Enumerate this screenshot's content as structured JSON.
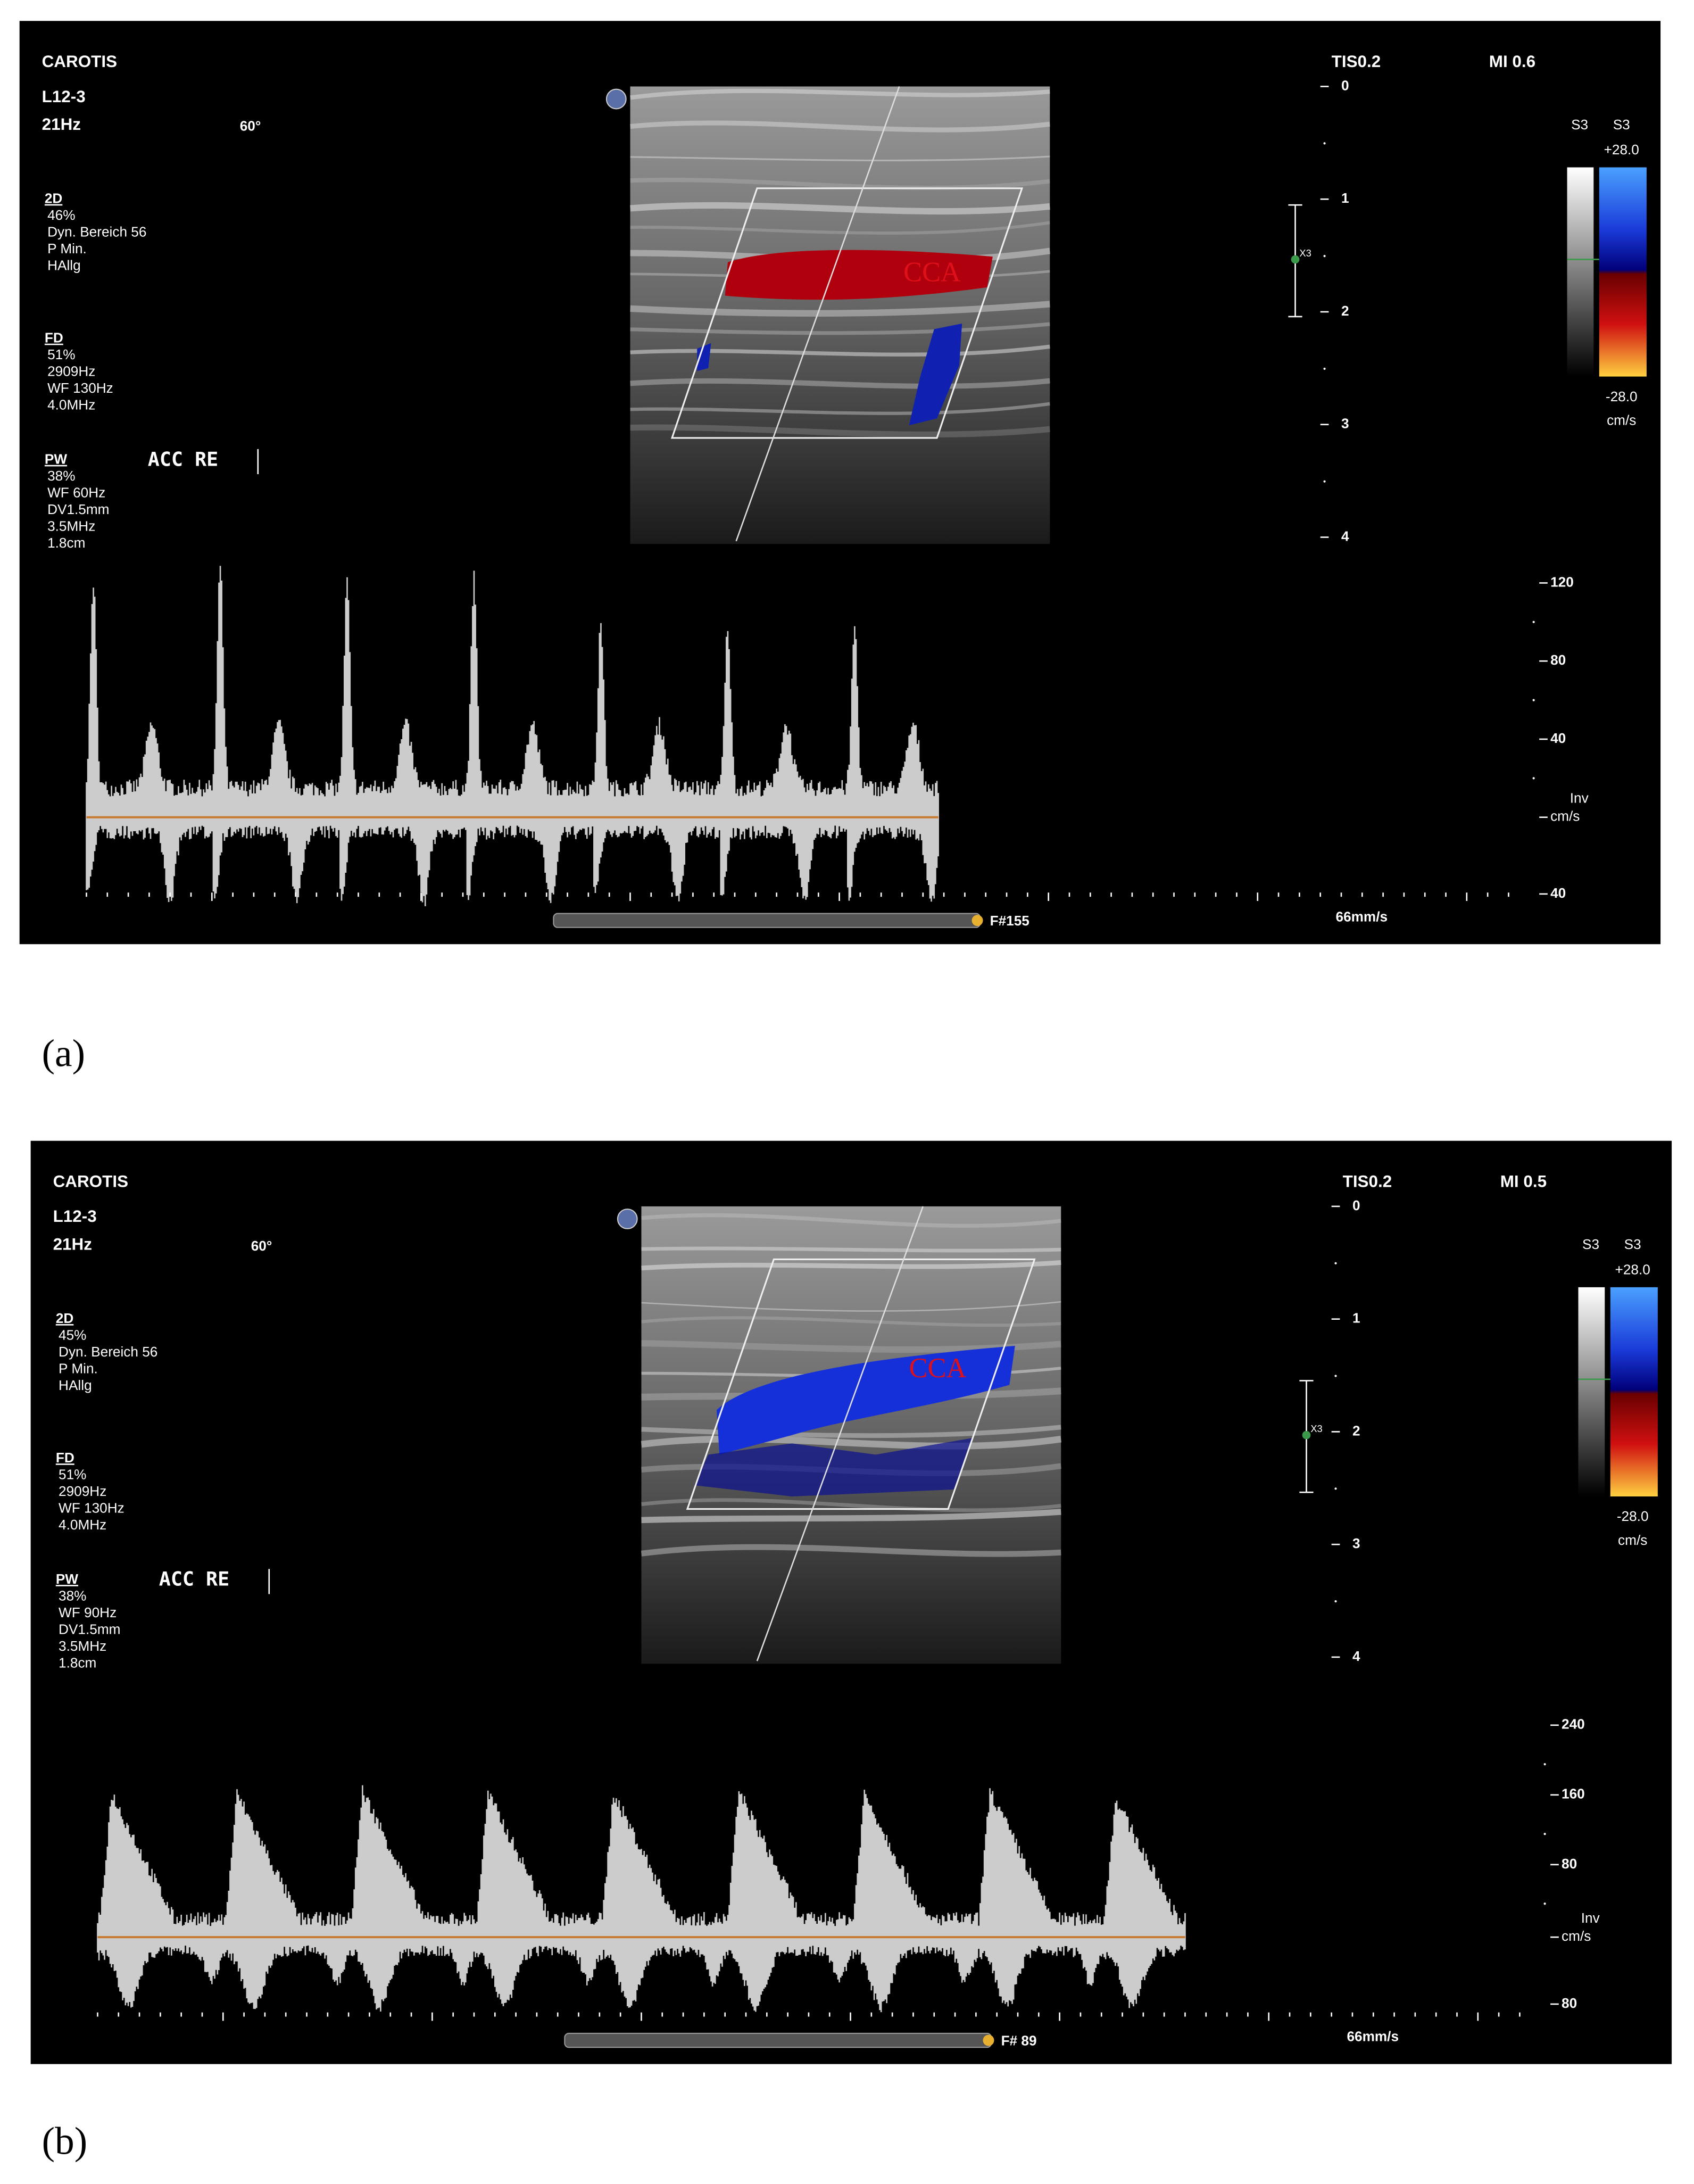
{
  "panels": [
    {
      "label": "(a)",
      "preset": "CAROTIS",
      "probe": "L12-3",
      "frame_rate": "21Hz",
      "steer_angle": "60°",
      "tis": "TIS0.2",
      "mi": "MI 0.6",
      "settings": [
        {
          "title": "2D",
          "lines": [
            "46%",
            "Dyn. Bereich 56",
            "P Min.",
            "HAllg"
          ]
        },
        {
          "title": "FD",
          "lines": [
            "51%",
            "2909Hz",
            "WF 130Hz",
            "4.0MHz"
          ]
        },
        {
          "title": "PW",
          "lines": [
            "38%",
            "WF 60Hz",
            "DV1.5mm",
            "3.5MHz",
            "1.8cm"
          ]
        }
      ],
      "location": "ACC RE",
      "vessel_label": "CCA",
      "focus_marker": "X3",
      "depth_ticks": [
        "0",
        "1",
        "2",
        "3",
        "4"
      ],
      "color_scale": {
        "gray_map": "S3",
        "color_map": "S3",
        "max": "+28.0",
        "min": "-28.0",
        "unit": "cm/s"
      },
      "velocity_scale": {
        "ticks": [
          "120",
          "80",
          "40"
        ],
        "invert": "Inv",
        "unit": "cm/s",
        "bottom": "40"
      },
      "sweep_speed": "66mm/s",
      "frame": "F#155"
    },
    {
      "label": "(b)",
      "preset": "CAROTIS",
      "probe": "L12-3",
      "frame_rate": "21Hz",
      "steer_angle": "60°",
      "tis": "TIS0.2",
      "mi": "MI 0.5",
      "settings": [
        {
          "title": "2D",
          "lines": [
            "45%",
            "Dyn. Bereich 56",
            "P Min.",
            "HAllg"
          ]
        },
        {
          "title": "FD",
          "lines": [
            "51%",
            "2909Hz",
            "WF 130Hz",
            "4.0MHz"
          ]
        },
        {
          "title": "PW",
          "lines": [
            "38%",
            "WF 90Hz",
            "DV1.5mm",
            "3.5MHz",
            "1.8cm"
          ]
        }
      ],
      "location": "ACC RE",
      "vessel_label": "CCA",
      "focus_marker": "X3",
      "depth_ticks": [
        "0",
        "1",
        "2",
        "3",
        "4"
      ],
      "color_scale": {
        "gray_map": "S3",
        "color_map": "S3",
        "max": "+28.0",
        "min": "-28.0",
        "unit": "cm/s"
      },
      "velocity_scale": {
        "ticks": [
          "240",
          "160",
          "80"
        ],
        "invert": "Inv",
        "unit": "cm/s",
        "bottom": "80"
      },
      "sweep_speed": "66mm/s",
      "frame": "F# 89"
    }
  ]
}
